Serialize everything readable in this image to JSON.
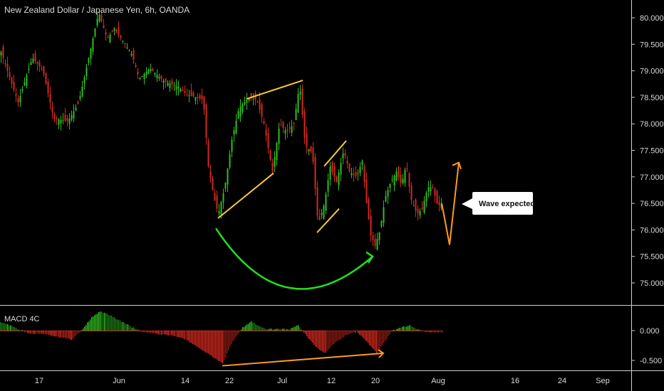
{
  "header": {
    "title": "New Zealand Dollar / Japanese Yen, 6h, OANDA"
  },
  "indicator": {
    "label": "MACD 4C",
    "ticks": [
      "0.000",
      "-0.500"
    ]
  },
  "callout": {
    "text": "Wave expected"
  },
  "colors": {
    "background": "#000000",
    "up": "#2fbf1f",
    "down": "#d42a1e",
    "trendline": "#ffc933",
    "projection": "#ff9b1f",
    "arc": "#22e01a",
    "divider": "#d0d0d0"
  },
  "chart_data": {
    "type": "candlestick",
    "symbol": "NZDJPY",
    "timeframe": "6h",
    "y_ticks": [
      "80.000",
      "79.500",
      "79.000",
      "78.500",
      "78.000",
      "77.500",
      "77.000",
      "76.500",
      "76.000",
      "75.500",
      "75.000"
    ],
    "x_ticks": [
      "17",
      "Jun",
      "14",
      "22",
      "Jul",
      "12",
      "20",
      "Aug",
      "16",
      "24",
      "Sep"
    ],
    "ylim": [
      74.7,
      80.25
    ],
    "price_path": [
      [
        0,
        79.4
      ],
      [
        10,
        79.0
      ],
      [
        25,
        78.4
      ],
      [
        45,
        79.25
      ],
      [
        60,
        79.0
      ],
      [
        75,
        78.1
      ],
      [
        95,
        78.05
      ],
      [
        110,
        78.4
      ],
      [
        125,
        79.3
      ],
      [
        138,
        80.1
      ],
      [
        150,
        79.6
      ],
      [
        160,
        79.8
      ],
      [
        175,
        79.5
      ],
      [
        185,
        79.3
      ],
      [
        195,
        78.85
      ],
      [
        210,
        79.05
      ],
      [
        230,
        78.8
      ],
      [
        250,
        78.7
      ],
      [
        262,
        78.55
      ],
      [
        275,
        78.5
      ],
      [
        285,
        78.45
      ],
      [
        292,
        77.2
      ],
      [
        300,
        76.6
      ],
      [
        306,
        76.3
      ],
      [
        315,
        76.8
      ],
      [
        325,
        77.7
      ],
      [
        335,
        78.3
      ],
      [
        350,
        78.5
      ],
      [
        360,
        78.45
      ],
      [
        370,
        78.0
      ],
      [
        382,
        77.1
      ],
      [
        392,
        78.0
      ],
      [
        402,
        77.85
      ],
      [
        412,
        78.0
      ],
      [
        420,
        78.75
      ],
      [
        428,
        77.6
      ],
      [
        438,
        77.45
      ],
      [
        446,
        76.1
      ],
      [
        455,
        76.5
      ],
      [
        463,
        77.2
      ],
      [
        472,
        76.9
      ],
      [
        482,
        77.5
      ],
      [
        490,
        77.1
      ],
      [
        500,
        77.0
      ],
      [
        508,
        77.3
      ],
      [
        514,
        76.5
      ],
      [
        520,
        75.9
      ],
      [
        526,
        75.7
      ],
      [
        533,
        76.0
      ],
      [
        540,
        76.6
      ],
      [
        548,
        76.9
      ],
      [
        556,
        77.1
      ],
      [
        563,
        76.85
      ],
      [
        570,
        77.25
      ],
      [
        576,
        76.6
      ],
      [
        585,
        76.3
      ],
      [
        592,
        76.4
      ],
      [
        600,
        76.8
      ],
      [
        607,
        76.8
      ],
      [
        614,
        76.45
      ],
      [
        620,
        76.5
      ]
    ],
    "macd_path": [
      [
        0,
        0.15
      ],
      [
        20,
        0.05
      ],
      [
        40,
        -0.05
      ],
      [
        60,
        -0.05
      ],
      [
        80,
        -0.1
      ],
      [
        100,
        -0.15
      ],
      [
        115,
        0.02
      ],
      [
        128,
        0.22
      ],
      [
        140,
        0.32
      ],
      [
        155,
        0.25
      ],
      [
        170,
        0.15
      ],
      [
        185,
        0.05
      ],
      [
        200,
        -0.02
      ],
      [
        220,
        -0.06
      ],
      [
        240,
        -0.08
      ],
      [
        260,
        -0.15
      ],
      [
        280,
        -0.3
      ],
      [
        295,
        -0.42
      ],
      [
        312,
        -0.55
      ],
      [
        325,
        -0.2
      ],
      [
        340,
        0.05
      ],
      [
        352,
        0.15
      ],
      [
        362,
        0.08
      ],
      [
        372,
        0.02
      ],
      [
        390,
        0.03
      ],
      [
        405,
        0.02
      ],
      [
        418,
        0.09
      ],
      [
        430,
        -0.1
      ],
      [
        445,
        -0.3
      ],
      [
        455,
        -0.38
      ],
      [
        470,
        -0.2
      ],
      [
        485,
        -0.08
      ],
      [
        500,
        -0.02
      ],
      [
        515,
        -0.2
      ],
      [
        528,
        -0.37
      ],
      [
        538,
        -0.2
      ],
      [
        550,
        0.0
      ],
      [
        565,
        0.06
      ],
      [
        575,
        0.09
      ],
      [
        585,
        0.02
      ],
      [
        595,
        -0.02
      ],
      [
        605,
        -0.03
      ],
      [
        620,
        -0.02
      ]
    ],
    "annotations": [
      {
        "type": "trendline",
        "from": [
          306,
          76.22
        ],
        "to": [
          384,
          77.07
        ]
      },
      {
        "type": "trendline",
        "from": [
          346,
          78.47
        ],
        "to": [
          425,
          78.82
        ]
      },
      {
        "type": "trendline",
        "from": [
          445,
          75.95
        ],
        "to": [
          476,
          76.4
        ]
      },
      {
        "type": "trendline",
        "from": [
          455,
          77.2
        ],
        "to": [
          486,
          77.68
        ]
      },
      {
        "type": "arc",
        "from": [
          303,
          76.03
        ],
        "to": [
          523,
          75.5
        ]
      },
      {
        "type": "projection",
        "points": [
          [
            620,
            76.5
          ],
          [
            631,
            75.72
          ],
          [
            644,
            77.27
          ]
        ]
      },
      {
        "type": "macd-divergence",
        "from": [
          312,
          -0.59
        ],
        "to": [
          538,
          -0.38
        ]
      }
    ]
  }
}
